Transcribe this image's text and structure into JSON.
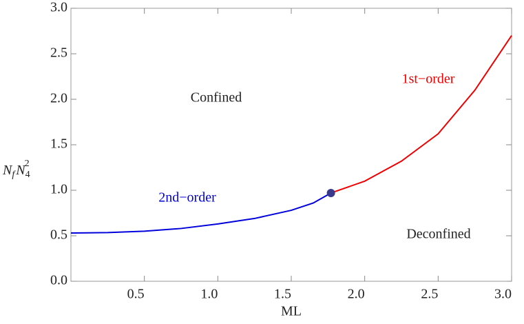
{
  "chart_data": {
    "type": "line",
    "xlabel": "ML",
    "ylabel_parts": [
      "N",
      "f",
      "N",
      "4",
      "2"
    ],
    "xlim": [
      0,
      3.0
    ],
    "ylim": [
      0,
      3.0
    ],
    "xticks": [
      0.5,
      {
        "value": 1.0,
        "label": "1.0"
      },
      1.5,
      {
        "value": 2.0,
        "label": "2.0"
      },
      2.5,
      {
        "value": 3.0,
        "label": "3.0"
      }
    ],
    "yticks": [
      {
        "value": 0,
        "label": "0.0"
      },
      0.5,
      {
        "value": 1.0,
        "label": "1.0"
      },
      1.5,
      {
        "value": 2.0,
        "label": "2.0"
      },
      2.5,
      {
        "value": 3.0,
        "label": "3.0"
      }
    ],
    "series": [
      {
        "name": "2nd−order",
        "color": "#0000dd",
        "x": [
          0,
          0.25,
          0.5,
          0.75,
          1.0,
          1.25,
          1.5,
          1.65,
          1.77
        ],
        "values": [
          0.53,
          0.535,
          0.55,
          0.58,
          0.63,
          0.69,
          0.78,
          0.86,
          0.97
        ]
      },
      {
        "name": "1st−order",
        "color": "#ee0000",
        "x": [
          1.77,
          2.0,
          2.25,
          2.5,
          2.75,
          3.0
        ],
        "values": [
          0.97,
          1.1,
          1.32,
          1.62,
          2.1,
          2.7
        ]
      }
    ],
    "marker": {
      "x": 1.77,
      "y": 0.97,
      "color": "#3a3a8c"
    },
    "annotations": [
      "Confined",
      "Deconfined"
    ]
  }
}
